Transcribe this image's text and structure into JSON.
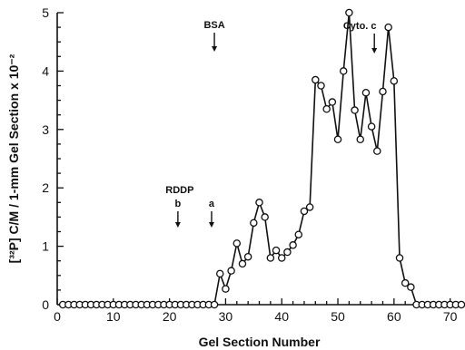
{
  "chart_data": {
    "type": "line",
    "title": "",
    "xlabel": "Gel Section Number",
    "ylabel": "[³²P] C/M / 1-mm Gel Section x 10⁻²",
    "xlim": [
      0,
      72
    ],
    "ylim": [
      0,
      5
    ],
    "xticks": [
      0,
      10,
      20,
      30,
      40,
      50,
      60,
      70
    ],
    "yticks": [
      0,
      1,
      2,
      3,
      4,
      5
    ],
    "grid": false,
    "series": [
      {
        "marker": "open-circle",
        "x": [
          1,
          2,
          3,
          4,
          5,
          6,
          7,
          8,
          9,
          10,
          11,
          12,
          13,
          14,
          15,
          16,
          17,
          18,
          19,
          20,
          21,
          22,
          23,
          24,
          25,
          26,
          27,
          28,
          29,
          30,
          31,
          32,
          33,
          34,
          35,
          36,
          37,
          38,
          39,
          40,
          41,
          42,
          43,
          44,
          45,
          46,
          47,
          48,
          49,
          50,
          51,
          52,
          53,
          54,
          55,
          56,
          57,
          58,
          59,
          60,
          61,
          62,
          63,
          64,
          65,
          66,
          67,
          68,
          69,
          70,
          71,
          72
        ],
        "y": [
          0,
          0,
          0,
          0,
          0,
          0,
          0,
          0,
          0,
          0,
          0,
          0,
          0,
          0,
          0,
          0,
          0,
          0,
          0,
          0,
          0,
          0,
          0,
          0,
          0,
          0,
          0,
          0,
          0.53,
          0.27,
          0.58,
          1.05,
          0.7,
          0.82,
          1.4,
          1.75,
          1.5,
          0.8,
          0.93,
          0.8,
          0.9,
          1.02,
          1.2,
          1.6,
          1.67,
          3.85,
          3.75,
          3.35,
          3.47,
          2.83,
          4.0,
          5.0,
          3.33,
          2.83,
          3.63,
          3.05,
          2.63,
          3.65,
          4.75,
          3.83,
          0.8,
          0.37,
          0.3,
          0,
          0,
          0,
          0,
          0,
          0,
          0,
          0,
          0
        ]
      }
    ],
    "annotations": [
      {
        "label": "BSA",
        "x": 28
      },
      {
        "label": "Cyto. c",
        "x": 56.5
      },
      {
        "label": "RDDP",
        "x": 21.5
      },
      {
        "label": "b",
        "x": 21.5
      },
      {
        "label": "a",
        "x": 27.5
      }
    ]
  }
}
